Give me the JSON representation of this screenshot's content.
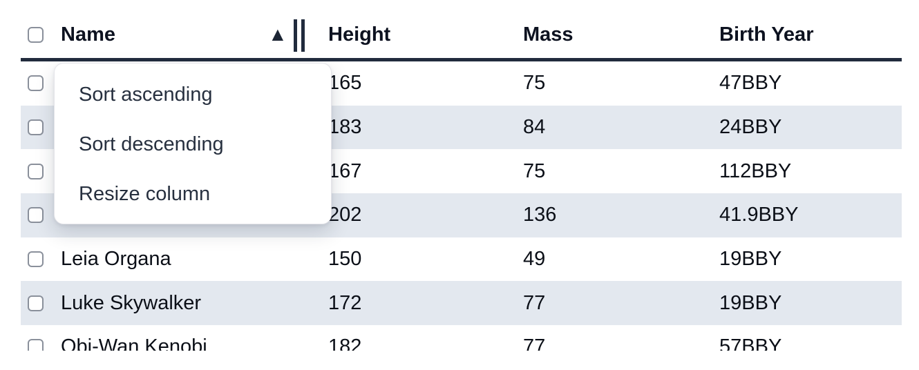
{
  "table": {
    "columns": [
      {
        "label": "Name",
        "sorted": "ascending"
      },
      {
        "label": "Height"
      },
      {
        "label": "Mass"
      },
      {
        "label": "Birth Year"
      }
    ],
    "rows": [
      {
        "name": "",
        "height": "165",
        "mass": "75",
        "birth_year": "47BBY",
        "name_covered_by_menu": true
      },
      {
        "name": "",
        "height": "183",
        "mass": "84",
        "birth_year": "24BBY",
        "name_covered_by_menu": true
      },
      {
        "name": "",
        "height": "167",
        "mass": "75",
        "birth_year": "112BBY",
        "name_covered_by_menu": true
      },
      {
        "name": "",
        "height": "202",
        "mass": "136",
        "birth_year": "41.9BBY",
        "name_covered_by_menu": true
      },
      {
        "name": "Leia Organa",
        "height": "150",
        "mass": "49",
        "birth_year": "19BBY"
      },
      {
        "name": "Luke Skywalker",
        "height": "172",
        "mass": "77",
        "birth_year": "19BBY"
      },
      {
        "name": "Obi-Wan Kenobi",
        "height": "182",
        "mass": "77",
        "birth_year": "57BBY"
      }
    ]
  },
  "context_menu": {
    "items": [
      {
        "label": "Sort ascending"
      },
      {
        "label": "Sort descending"
      },
      {
        "label": "Resize column"
      }
    ]
  },
  "icons": {
    "sort_ascending": "▲"
  },
  "colors": {
    "header_border": "#212b3d",
    "row_stripe": "#e3e8ef",
    "text": "#0b0f17",
    "menu_text": "#27303f",
    "checkbox_border": "#8a909b",
    "sort_icon": "#1c2534",
    "background": "#ffffff"
  }
}
